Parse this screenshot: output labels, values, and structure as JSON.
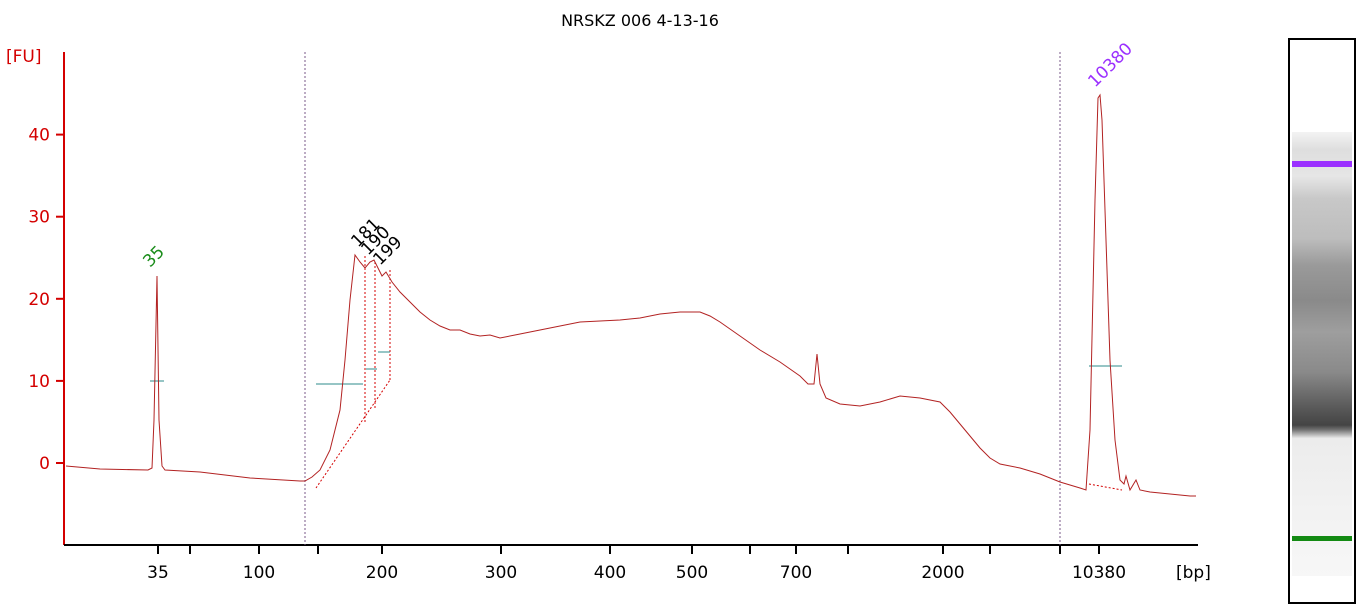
{
  "title": "NRSKZ 006 4-13-16",
  "chart_data": {
    "type": "line",
    "title": "NRSKZ 006 4-13-16",
    "ylabel": "[FU]",
    "xlabel": "[bp]",
    "ylim": [
      -9,
      50
    ],
    "yticks": [
      0,
      10,
      20,
      30,
      40
    ],
    "xtick_labels": [
      "35",
      "100",
      "200",
      "300",
      "400",
      "500",
      "700",
      "2000",
      "10380"
    ],
    "peaks": [
      {
        "label": "35",
        "color": "#1a8c1a",
        "fu": 23
      },
      {
        "label": "181",
        "color": "#000000",
        "fu": 25.5
      },
      {
        "label": "190",
        "color": "#000000",
        "fu": 24.5
      },
      {
        "label": "199",
        "color": "#000000",
        "fu": 23
      },
      {
        "label": "10380",
        "color": "#9b30ff",
        "fu": 45
      }
    ],
    "colors": {
      "axis": "#d40000",
      "trace": "#b22222",
      "lower_marker": "#1a8c1a",
      "upper_marker": "#9b30ff"
    }
  }
}
